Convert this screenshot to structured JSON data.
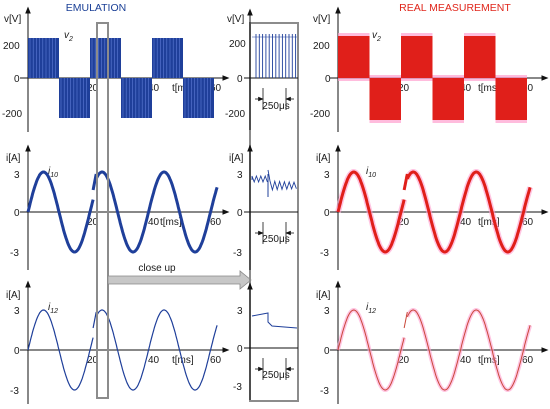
{
  "titles": {
    "emulation": "EMULATION",
    "real": "REAL MEASUREMENT"
  },
  "close_up_label": "close up",
  "axes": {
    "voltage_unit": "v[V]",
    "current_unit": "i[A]",
    "time_unit": "t[ms]"
  },
  "signals": {
    "v2": "v",
    "v2_sub": "2",
    "i10": "i",
    "i10_sub": "10",
    "i12": "i",
    "i12_sub": "12"
  },
  "zoom_marker": "250μs",
  "colors": {
    "emulation": "#1f3f9a",
    "real": "#e01f1a",
    "real_glow": "#ff9fcf",
    "close_up_box": "#8c8c8c",
    "close_up_arrow": "#c7c7c7"
  },
  "chart_data": [
    {
      "type": "line",
      "panel": "emulation-voltage",
      "title": "EMULATION",
      "ylabel": "v[V]",
      "xlabel": "t[ms]",
      "x_ticks": [
        20,
        40,
        60
      ],
      "y_ticks": [
        200,
        0,
        -200
      ],
      "series": [
        {
          "name": "v2",
          "waveform": "square-pwm",
          "amplitude": 250,
          "period_ms": 40
        }
      ]
    },
    {
      "type": "line",
      "panel": "emulation-i10",
      "ylabel": "i[A]",
      "xlabel": "t[ms]",
      "x_ticks": [
        20,
        40,
        60
      ],
      "y_ticks": [
        3,
        0,
        -3
      ],
      "series": [
        {
          "name": "i10",
          "waveform": "sine",
          "amplitude": 3.5,
          "period_ms": 20
        }
      ]
    },
    {
      "type": "line",
      "panel": "emulation-i12",
      "ylabel": "i[A]",
      "xlabel": "t[ms]",
      "x_ticks": [
        20,
        40,
        60
      ],
      "y_ticks": [
        3,
        0,
        -3
      ],
      "series": [
        {
          "name": "i12",
          "waveform": "sine",
          "amplitude": 3.5,
          "period_ms": 20
        }
      ]
    },
    {
      "type": "line",
      "panel": "close-up-voltage",
      "ylabel": "v[V]",
      "y_ticks": [
        200,
        0,
        -200
      ],
      "marker": "250μs"
    },
    {
      "type": "line",
      "panel": "close-up-i10",
      "ylabel": "i[A]",
      "y_ticks": [
        3,
        0,
        -3
      ],
      "marker": "250μs"
    },
    {
      "type": "line",
      "panel": "close-up-i12",
      "y_ticks": [
        3,
        0,
        -3
      ],
      "marker": "250μs"
    },
    {
      "type": "line",
      "panel": "real-voltage",
      "title": "REAL MEASUREMENT",
      "ylabel": "v[V]",
      "xlabel": "t[ms]",
      "x_ticks": [
        20,
        40,
        60
      ],
      "y_ticks": [
        200,
        0,
        -200
      ],
      "series": [
        {
          "name": "v2",
          "waveform": "square-pwm",
          "amplitude": 250,
          "period_ms": 40
        }
      ]
    },
    {
      "type": "line",
      "panel": "real-i10",
      "ylabel": "i[A]",
      "xlabel": "t[ms]",
      "x_ticks": [
        20,
        40,
        60
      ],
      "y_ticks": [
        3,
        0,
        -3
      ],
      "series": [
        {
          "name": "i10",
          "waveform": "sine",
          "amplitude": 3.5,
          "period_ms": 20
        }
      ]
    },
    {
      "type": "line",
      "panel": "real-i12",
      "ylabel": "i[A]",
      "xlabel": "t[ms]",
      "x_ticks": [
        20,
        40,
        60
      ],
      "y_ticks": [
        3,
        0,
        -3
      ],
      "series": [
        {
          "name": "i12",
          "waveform": "sine",
          "amplitude": 3.5,
          "period_ms": 20
        }
      ]
    }
  ]
}
